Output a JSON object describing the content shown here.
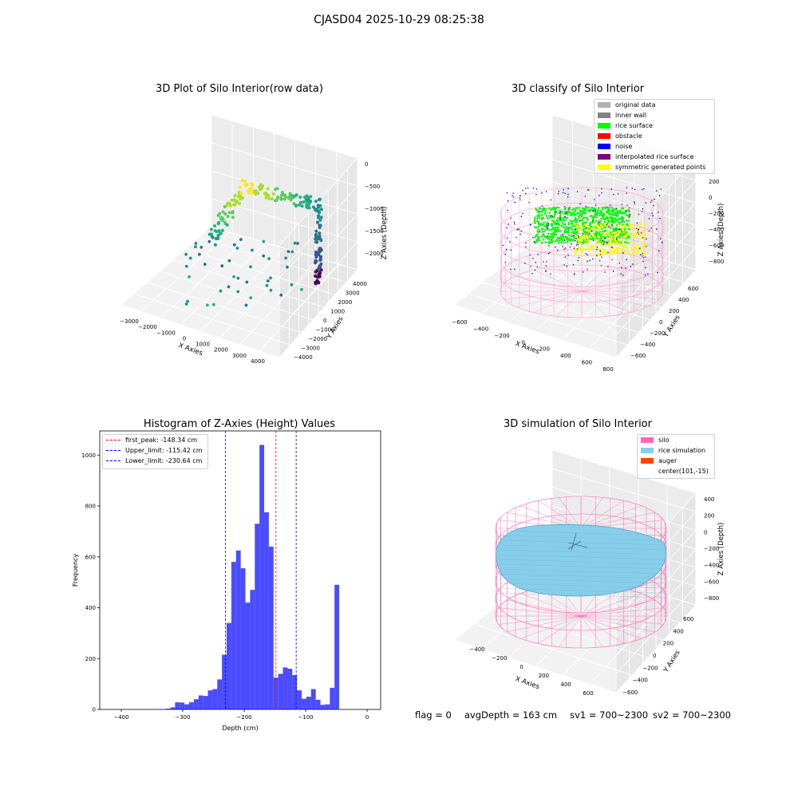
{
  "suptitle": "CJASD04 2025-10-29 08:25:38",
  "panels": {
    "raw": {
      "title": "3D Plot of Silo Interior(row data)",
      "xlabel": "X Axies",
      "ylabel": "Y Axies",
      "zlabel": "Z Axies (Depth)",
      "xticks": [
        "−3000",
        "−2000",
        "−1000",
        "0",
        "1000",
        "2000",
        "3000",
        "4000"
      ],
      "yticks": [
        "−4000",
        "−3000",
        "−2000",
        "−1000",
        "0",
        "1000",
        "2000",
        "3000",
        "4000"
      ],
      "zticks": [
        "0",
        "−500",
        "−1000",
        "−1500",
        "−2000"
      ]
    },
    "classify": {
      "title": "3D classify of Silo Interior",
      "xlabel": "X Axies",
      "ylabel": "Y Axies",
      "zlabel": "Z Axies (Depth)",
      "xticks": [
        "−600",
        "−400",
        "−200",
        "0",
        "200",
        "400",
        "600",
        "800"
      ],
      "yticks": [
        "−600",
        "−400",
        "−200",
        "0",
        "200",
        "400",
        "600"
      ],
      "zticks": [
        "200",
        "0",
        "−200",
        "−400",
        "−600",
        "−800"
      ],
      "zticks_partial": "0",
      "legend": [
        {
          "label": "original data",
          "color": "#b0b0b0"
        },
        {
          "label": "inner wall",
          "color": "#808080"
        },
        {
          "label": "rice surface",
          "color": "#00ff00"
        },
        {
          "label": "obstacle",
          "color": "#ff0000"
        },
        {
          "label": "noise",
          "color": "#0000ff"
        },
        {
          "label": "interpolated rice surface",
          "color": "#800080"
        },
        {
          "label": "symmetric generated points",
          "color": "#ffff00"
        }
      ]
    },
    "sim": {
      "title": "3D simulation of Silo Interior",
      "xlabel": "X Axies",
      "ylabel": "Y Axies",
      "zlabel": "Z Axies (Depth)",
      "xticks": [
        "−400",
        "−200",
        "0",
        "200",
        "400",
        "600"
      ],
      "yticks": [
        "−600",
        "−400",
        "−200",
        "0",
        "200",
        "400",
        "600"
      ],
      "zticks": [
        "400",
        "200",
        "0",
        "−200",
        "−400",
        "−600",
        "−800"
      ],
      "legend": [
        {
          "label": "silo",
          "color": "#ff69b4"
        },
        {
          "label": "rice simulation",
          "color": "#87ceeb"
        },
        {
          "label": "auger",
          "color": "#ff4500"
        },
        {
          "label": "center(101,-15)",
          "color": ""
        }
      ]
    }
  },
  "chart_data": [
    {
      "type": "bar",
      "title": "Histogram of Z-Axies (Height) Values",
      "xlabel": "Depth (cm)",
      "ylabel": "Frequency",
      "xlim": [
        -435,
        22
      ],
      "ylim": [
        0,
        1095
      ],
      "xticks": [
        -400,
        -300,
        -200,
        -100,
        0
      ],
      "xtick_labels": [
        "−400",
        "−300",
        "−200",
        "−100",
        "0"
      ],
      "yticks": [
        0,
        200,
        400,
        600,
        800,
        1000
      ],
      "yticks_labels": [
        "0",
        "200",
        "400",
        "600",
        "800",
        "1000"
      ],
      "bar_color": "#0000ff",
      "bin_width": 7.63,
      "bin_start": -343,
      "values": [
        1,
        1,
        3,
        8,
        28,
        27,
        20,
        28,
        40,
        55,
        53,
        75,
        80,
        118,
        215,
        340,
        580,
        625,
        555,
        420,
        470,
        730,
        1040,
        775,
        640,
        125,
        140,
        165,
        160,
        135,
        75,
        42,
        50,
        80,
        38,
        18,
        20,
        85,
        490
      ],
      "vlines": [
        {
          "label": "first_peak: -148.34 cm",
          "x": -148.34,
          "color": "#ff0000"
        },
        {
          "label": "Upper_limit: -115.42 cm",
          "x": -115.42,
          "color": "#0000ff"
        },
        {
          "label": "Lower_limit: -230.64 cm",
          "x": -230.64,
          "color": "#0000ff"
        }
      ],
      "legend_position": "top-left"
    }
  ],
  "footer": {
    "flag": "flag = 0",
    "avg": "avgDepth = 163 cm",
    "sv1": "sv1 = 700~2300",
    "sv2": "sv2 = 700~2300"
  }
}
